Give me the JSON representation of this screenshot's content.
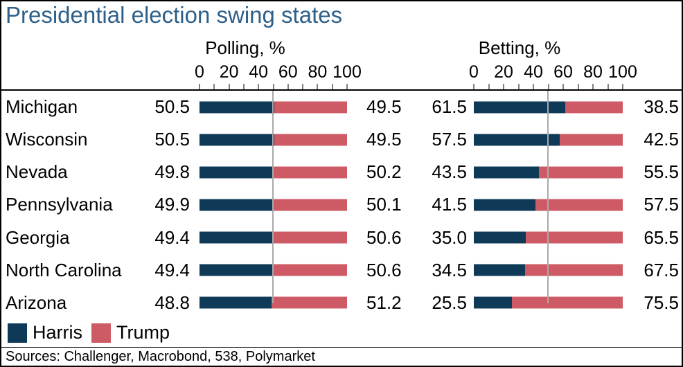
{
  "colors": {
    "title": "#2d5f88",
    "harris": "#0e3a57",
    "trump": "#cd5a64",
    "reference_line": "#a9a9a9",
    "axis": "#000000",
    "background": "#ffffff",
    "border": "#000000"
  },
  "chart_data": {
    "type": "bar",
    "orientation": "horizontal-stacked",
    "title": "Presidential election swing states",
    "panels": [
      {
        "key": "polling",
        "label": "Polling, %"
      },
      {
        "key": "betting",
        "label": "Betting, %"
      }
    ],
    "axis": {
      "tick_labels": [
        "0",
        "20",
        "40",
        "60",
        "80",
        "100"
      ],
      "minor_tick_step": 10,
      "range": [
        0,
        100
      ],
      "reference_line": 50,
      "grid": false
    },
    "categories": [
      "Michigan",
      "Wisconsin",
      "Nevada",
      "Pennsylvania",
      "Georgia",
      "North Carolina",
      "Arizona"
    ],
    "series": [
      {
        "name": "Harris",
        "color": "#0e3a57",
        "polling": [
          50.5,
          50.5,
          49.8,
          49.9,
          49.4,
          49.4,
          48.8
        ],
        "betting": [
          61.5,
          57.5,
          43.5,
          41.5,
          35.0,
          34.5,
          25.5
        ]
      },
      {
        "name": "Trump",
        "color": "#cd5a64",
        "polling": [
          49.5,
          49.5,
          50.2,
          50.1,
          50.6,
          50.6,
          51.2
        ],
        "betting": [
          38.5,
          42.5,
          55.5,
          57.5,
          65.5,
          67.5,
          75.5
        ]
      }
    ],
    "rows": [
      {
        "state": "Michigan",
        "polling_harris": "50.5",
        "polling_trump": "49.5",
        "betting_harris": "61.5",
        "betting_trump": "38.5"
      },
      {
        "state": "Wisconsin",
        "polling_harris": "50.5",
        "polling_trump": "49.5",
        "betting_harris": "57.5",
        "betting_trump": "42.5"
      },
      {
        "state": "Nevada",
        "polling_harris": "49.8",
        "polling_trump": "50.2",
        "betting_harris": "43.5",
        "betting_trump": "55.5"
      },
      {
        "state": "Pennsylvania",
        "polling_harris": "49.9",
        "polling_trump": "50.1",
        "betting_harris": "41.5",
        "betting_trump": "57.5"
      },
      {
        "state": "Georgia",
        "polling_harris": "49.4",
        "polling_trump": "50.6",
        "betting_harris": "35.0",
        "betting_trump": "65.5"
      },
      {
        "state": "North Carolina",
        "polling_harris": "49.4",
        "polling_trump": "50.6",
        "betting_harris": "34.5",
        "betting_trump": "67.5"
      },
      {
        "state": "Arizona",
        "polling_harris": "48.8",
        "polling_trump": "51.2",
        "betting_harris": "25.5",
        "betting_trump": "75.5"
      }
    ],
    "legend": [
      {
        "label": "Harris",
        "color": "#0e3a57"
      },
      {
        "label": "Trump",
        "color": "#cd5a64"
      }
    ],
    "legend_position": "bottom-left",
    "footer": "Sources: Challenger, Macrobond, 538, Polymarket"
  }
}
